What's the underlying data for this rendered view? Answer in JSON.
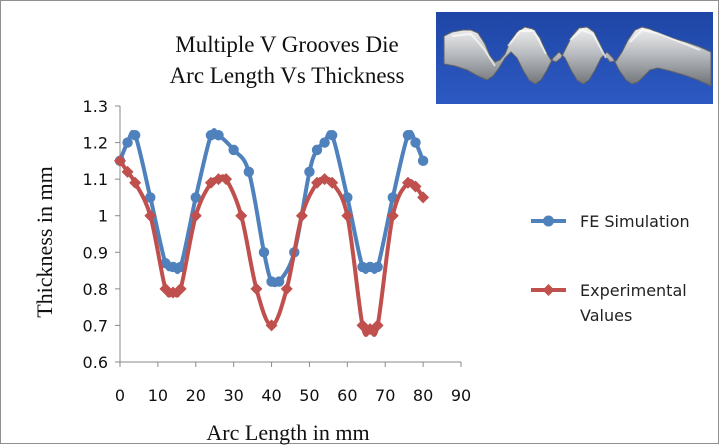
{
  "chart_data": {
    "type": "line",
    "title_lines": [
      "Multiple V Grooves Die",
      "Arc Length Vs Thickness"
    ],
    "xlabel": "Arc Length in mm",
    "ylabel": "Thickness in mm",
    "xlim": [
      0,
      90
    ],
    "ylim": [
      0.6,
      1.3
    ],
    "x_ticks": [
      "0",
      "10",
      "20",
      "30",
      "40",
      "50",
      "60",
      "70",
      "80",
      "90"
    ],
    "y_ticks": [
      "0.6",
      "0.7",
      "0.8",
      "0.9",
      "1",
      "1.1",
      "1.2",
      "1.3"
    ],
    "grid": false,
    "legend_position": "right",
    "series": [
      {
        "name": "FE Simulation",
        "color": "#4f81bd",
        "marker": "circle",
        "x": [
          0,
          2,
          4,
          8,
          12,
          14,
          16,
          20,
          24,
          26,
          30,
          34,
          38,
          40,
          42,
          46,
          50,
          52,
          54,
          56,
          60,
          64,
          66,
          68,
          72,
          76,
          78,
          80
        ],
        "y": [
          1.15,
          1.2,
          1.22,
          1.05,
          0.87,
          0.86,
          0.86,
          1.05,
          1.22,
          1.22,
          1.18,
          1.12,
          0.9,
          0.82,
          0.82,
          0.9,
          1.12,
          1.18,
          1.2,
          1.22,
          1.05,
          0.86,
          0.86,
          0.86,
          1.05,
          1.22,
          1.2,
          1.15
        ]
      },
      {
        "name": "Experimental Values",
        "legend_lines": [
          "Experimental",
          "Values"
        ],
        "color": "#c0504d",
        "marker": "diamond",
        "x": [
          0,
          2,
          4,
          8,
          12,
          14,
          16,
          20,
          24,
          26,
          28,
          32,
          36,
          40,
          44,
          48,
          52,
          54,
          56,
          60,
          64,
          66,
          68,
          72,
          76,
          78,
          80
        ],
        "y": [
          1.15,
          1.12,
          1.09,
          1.0,
          0.8,
          0.79,
          0.8,
          1.0,
          1.09,
          1.1,
          1.1,
          1.0,
          0.8,
          0.7,
          0.8,
          1.0,
          1.09,
          1.1,
          1.09,
          1.0,
          0.7,
          0.69,
          0.7,
          1.0,
          1.09,
          1.08,
          1.05
        ]
      }
    ]
  },
  "photo": {
    "description_name": "v-groove-specimen-photo"
  }
}
